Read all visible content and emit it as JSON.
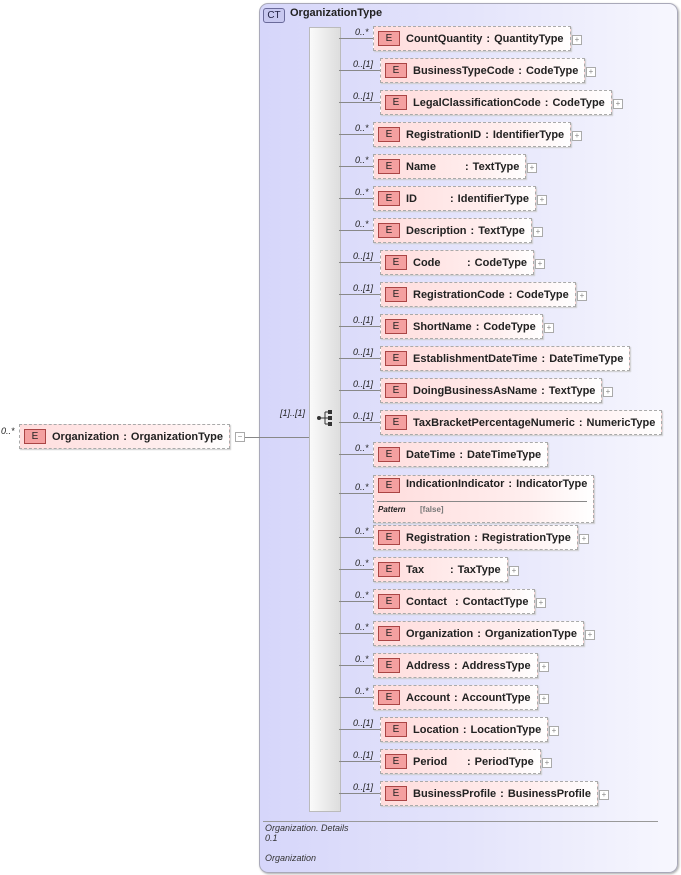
{
  "root": {
    "card": "0..*",
    "badge": "E",
    "name": "Organization",
    "type": "OrganizationType",
    "expand": "−"
  },
  "complex_type": {
    "badge": "CT",
    "title": "OrganizationType",
    "sequence_card": "[1]..[1]"
  },
  "children": [
    {
      "card": "0..*",
      "name": "CountQuantity",
      "type": "QuantityType",
      "plus": true
    },
    {
      "card": "0..[1]",
      "name": "BusinessTypeCode",
      "type": "CodeType",
      "plus": true
    },
    {
      "card": "0..[1]",
      "name": "LegalClassificationCode",
      "type": "CodeType",
      "plus": true
    },
    {
      "card": "0..*",
      "name": "RegistrationID",
      "type": "IdentifierType",
      "plus": true
    },
    {
      "card": "0..*",
      "name": "Name",
      "type": "TextType",
      "plus": true
    },
    {
      "card": "0..*",
      "name": "ID",
      "type": "IdentifierType",
      "plus": true
    },
    {
      "card": "0..*",
      "name": "Description",
      "type": "TextType",
      "plus": true
    },
    {
      "card": "0..[1]",
      "name": "Code",
      "type": "CodeType",
      "plus": true
    },
    {
      "card": "0..[1]",
      "name": "RegistrationCode",
      "type": "CodeType",
      "plus": true
    },
    {
      "card": "0..[1]",
      "name": "ShortName",
      "type": "CodeType",
      "plus": true
    },
    {
      "card": "0..[1]",
      "name": "EstablishmentDateTime",
      "type": "DateTimeType",
      "plus": false
    },
    {
      "card": "0..[1]",
      "name": "DoingBusinessAsName",
      "type": "TextType",
      "plus": true
    },
    {
      "card": "0..[1]",
      "name": "TaxBracketPercentageNumeric",
      "type": "NumericType",
      "plus": false
    },
    {
      "card": "0..*",
      "name": "DateTime",
      "type": "DateTimeType",
      "plus": false
    },
    {
      "card": "0..*",
      "name": "IndicationIndicator",
      "type": "IndicatorType",
      "plus": false,
      "facet_label": "Pattern",
      "facet_value": "[false]"
    },
    {
      "card": "0..*",
      "name": "Registration",
      "type": "RegistrationType",
      "plus": true
    },
    {
      "card": "0..*",
      "name": "Tax",
      "type": "TaxType",
      "plus": true
    },
    {
      "card": "0..*",
      "name": "Contact",
      "type": "ContactType",
      "plus": true
    },
    {
      "card": "0..*",
      "name": "Organization",
      "type": "OrganizationType",
      "plus": true
    },
    {
      "card": "0..*",
      "name": "Address",
      "type": "AddressType",
      "plus": true
    },
    {
      "card": "0..*",
      "name": "Account",
      "type": "AccountType",
      "plus": true
    },
    {
      "card": "0..[1]",
      "name": "Location",
      "type": "LocationType",
      "plus": true
    },
    {
      "card": "0..[1]",
      "name": "Period",
      "type": "PeriodType",
      "plus": true
    },
    {
      "card": "0..[1]",
      "name": "BusinessProfile",
      "type": "BusinessProfile",
      "plus": true
    }
  ],
  "footer": {
    "line1": "Organization. Details",
    "line2": "0.1",
    "line3": "Organization"
  },
  "colors": {
    "element_fill": "#ffdddd",
    "complex_type_fill": "#d6d6fa",
    "badge_fill": "#f4a0a0"
  }
}
